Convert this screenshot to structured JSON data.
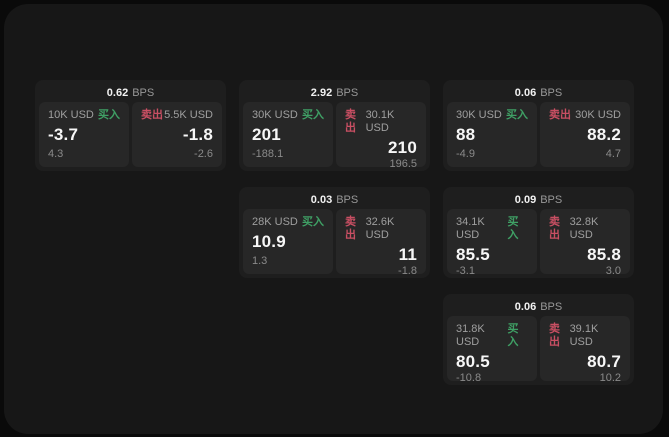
{
  "theme": {
    "outer_background": "#0a0a0a",
    "surface_background": "#171717",
    "card_background": "#1e1e1e",
    "cell_background": "#272727",
    "buy_color": "#3fa065",
    "sell_color": "#c94f63",
    "primary_text": "#f7f7f7",
    "muted_text": "#9f9f9f"
  },
  "labels": {
    "bps_unit": "BPS",
    "buy": "买入",
    "sell": "卖出"
  },
  "cards": [
    {
      "row": 1,
      "col": 1,
      "bps": "0.62",
      "buy": {
        "size": "10K USD",
        "price": "-3.7",
        "delta": "4.3"
      },
      "sell": {
        "size": "5.5K USD",
        "price": "-1.8",
        "delta": "-2.6"
      }
    },
    {
      "row": 1,
      "col": 2,
      "bps": "2.92",
      "buy": {
        "size": "30K USD",
        "price": "201",
        "delta": "-188.1"
      },
      "sell": {
        "size": "30.1K USD",
        "price": "210",
        "delta": "196.5"
      }
    },
    {
      "row": 1,
      "col": 3,
      "bps": "0.06",
      "buy": {
        "size": "30K USD",
        "price": "88",
        "delta": "-4.9"
      },
      "sell": {
        "size": "30K USD",
        "price": "88.2",
        "delta": "4.7"
      }
    },
    {
      "row": 2,
      "col": 2,
      "bps": "0.03",
      "buy": {
        "size": "28K USD",
        "price": "10.9",
        "delta": "1.3"
      },
      "sell": {
        "size": "32.6K USD",
        "price": "11",
        "delta": "-1.8"
      }
    },
    {
      "row": 2,
      "col": 3,
      "bps": "0.09",
      "buy": {
        "size": "34.1K USD",
        "price": "85.5",
        "delta": "-3.1"
      },
      "sell": {
        "size": "32.8K USD",
        "price": "85.8",
        "delta": "3.0"
      }
    },
    {
      "row": 3,
      "col": 3,
      "bps": "0.06",
      "buy": {
        "size": "31.8K USD",
        "price": "80.5",
        "delta": "-10.8"
      },
      "sell": {
        "size": "39.1K USD",
        "price": "80.7",
        "delta": "10.2"
      }
    }
  ]
}
